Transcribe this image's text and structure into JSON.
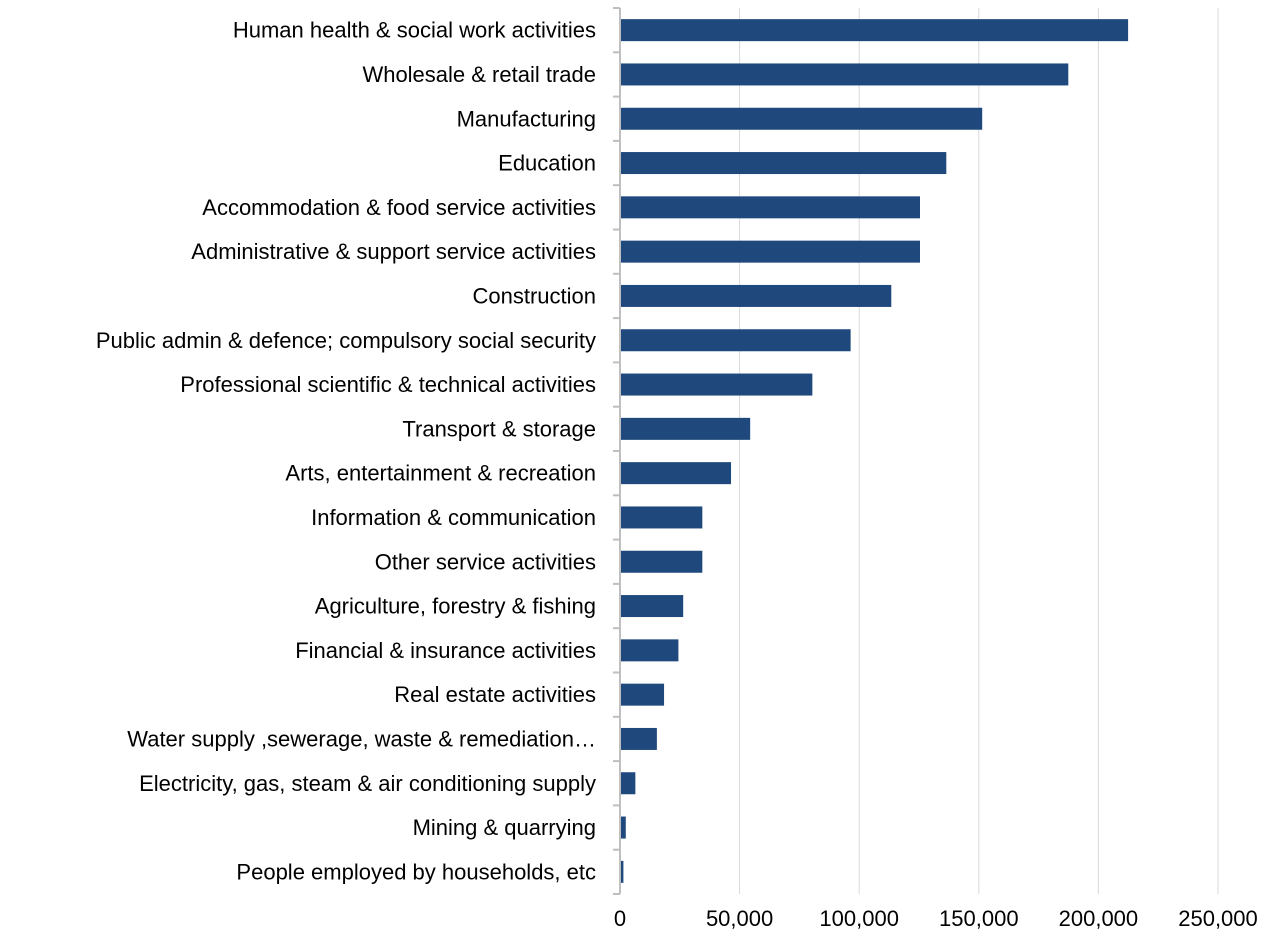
{
  "chart_data": {
    "type": "bar",
    "orientation": "horizontal",
    "categories": [
      "Human health & social work activities",
      "Wholesale & retail trade",
      "Manufacturing",
      "Education",
      "Accommodation & food service activities",
      "Administrative & support service activities",
      "Construction",
      "Public admin & defence; compulsory social security",
      "Professional scientific & technical activities",
      "Transport & storage",
      "Arts, entertainment & recreation",
      "Information & communication",
      "Other service activities",
      "Agriculture, forestry & fishing",
      "Financial & insurance activities",
      "Real estate activities",
      "Water supply ,sewerage, waste & remediation…",
      "Electricity, gas, steam & air conditioning supply",
      "Mining & quarrying",
      "People employed by households, etc"
    ],
    "values": [
      212000,
      187000,
      151000,
      136000,
      125000,
      125000,
      113000,
      96000,
      80000,
      54000,
      46000,
      34000,
      34000,
      26000,
      24000,
      18000,
      15000,
      6000,
      2000,
      1000
    ],
    "xlim": [
      0,
      250000
    ],
    "ticks": [
      0,
      50000,
      100000,
      150000,
      200000,
      250000
    ],
    "tick_labels": [
      "0",
      "50,000",
      "100,000",
      "150,000",
      "200,000",
      "250,000"
    ],
    "grid": "vertical",
    "bar_color": "#1F497D",
    "title": "",
    "xlabel": "",
    "ylabel": ""
  }
}
